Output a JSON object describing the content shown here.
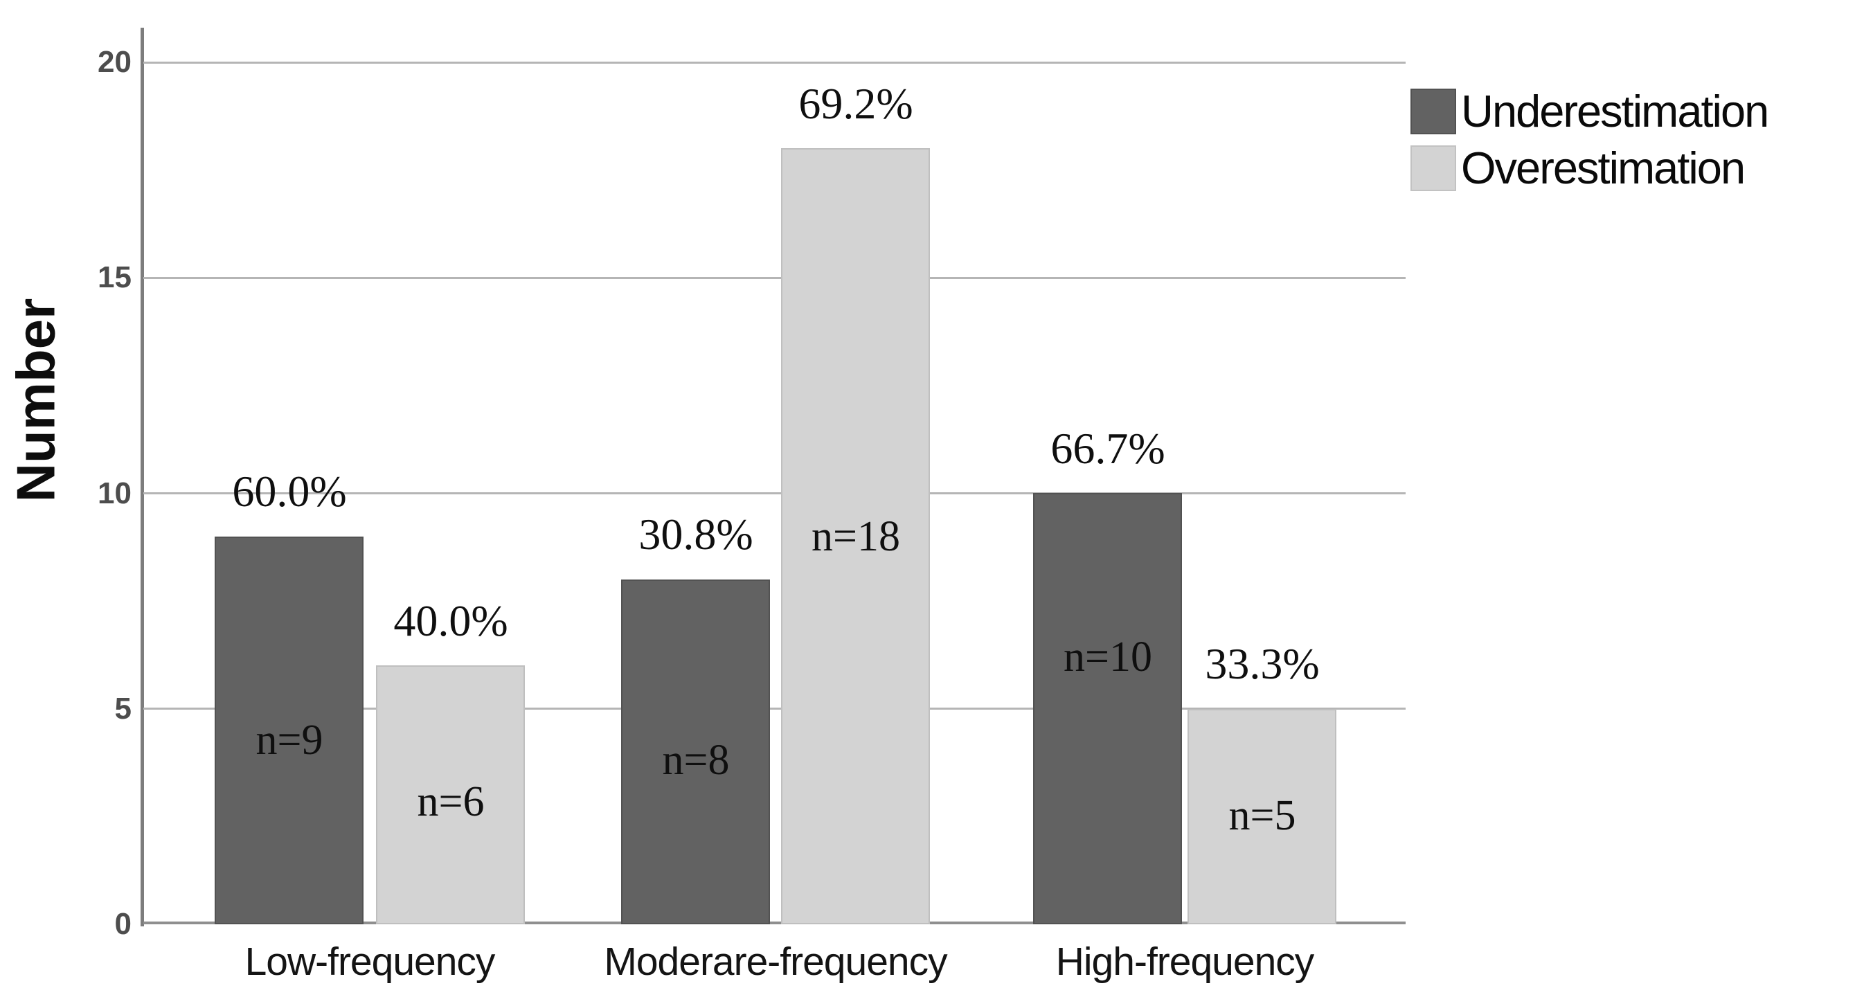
{
  "chart_data": {
    "type": "bar",
    "title": "",
    "xlabel": "",
    "ylabel": "Number",
    "categories": [
      "Low-frequency",
      "Moderare-frequency",
      "High-frequency"
    ],
    "series": [
      {
        "name": "Underestimation",
        "color": "#626262",
        "values": [
          9,
          8,
          10
        ],
        "percent_labels": [
          "60.0%",
          "30.8%",
          "66.7%"
        ],
        "count_labels": [
          "n=9",
          "n=8",
          "n=10"
        ]
      },
      {
        "name": "Overestimation",
        "color": "#d3d3d3",
        "values": [
          6,
          18,
          5
        ],
        "percent_labels": [
          "40.0%",
          "69.2%",
          "33.3%"
        ],
        "count_labels": [
          "n=6",
          "n=18",
          "n=5"
        ]
      }
    ],
    "yticks": [
      0,
      5,
      10,
      15,
      20
    ],
    "ylim": [
      0,
      20
    ],
    "grid": true,
    "legend_position": "top-right",
    "colors": {
      "underestimation_fill": "#626262",
      "overestimation_fill": "#d3d3d3",
      "gridline": "#b5b5b5",
      "axis_line": "#7d7d7d",
      "tick_label": "#4d4d4d",
      "text": "#0f0f0f"
    }
  }
}
